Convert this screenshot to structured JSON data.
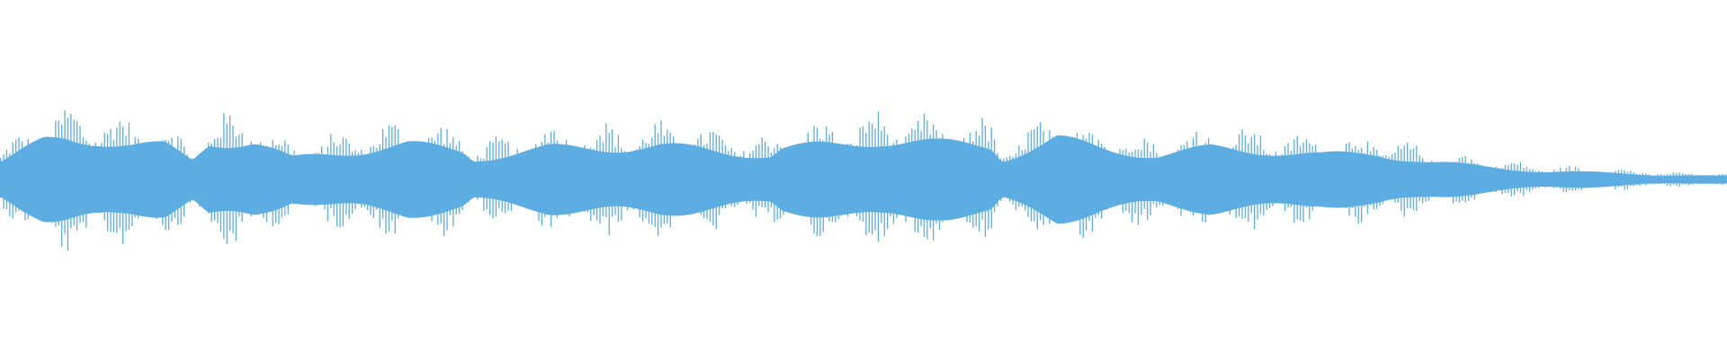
{
  "chart_data": {
    "type": "waveform",
    "title": "",
    "xlabel": "",
    "ylabel": "",
    "grid": false,
    "legend": "none",
    "color": "#5dade2",
    "background": "#ffffff"
  }
}
